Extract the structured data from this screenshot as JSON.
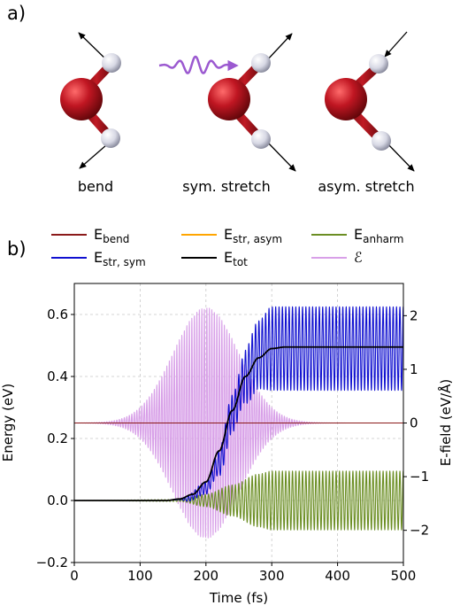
{
  "panel_a": {
    "panel_label": "a)",
    "modes": [
      {
        "label": "bend"
      },
      {
        "label": "sym. stretch"
      },
      {
        "label": "asym. stretch"
      }
    ],
    "colors": {
      "oxygen": "#b3121c",
      "hydrogen": "#dcdde6",
      "pulse": "#9b59d0"
    },
    "pulse_icon": "wavy-arrow-icon"
  },
  "chart_data": {
    "panel_label": "b)",
    "type": "line",
    "xlabel": "Time (fs)",
    "ylabel": "Energy (eV)",
    "y2label": "E-field (eV/Å)",
    "xlim": [
      0,
      500
    ],
    "ylim": [
      -0.2,
      0.7
    ],
    "y2lim": [
      -2.6,
      2.6
    ],
    "xticks": [
      "0",
      "100",
      "200",
      "300",
      "400",
      "500"
    ],
    "yticks": [
      "−0.2",
      "0.0",
      "0.2",
      "0.4",
      "0.6"
    ],
    "y2ticks": [
      "−2",
      "−1",
      "0",
      "1",
      "2"
    ],
    "y2tick_values": [
      -2,
      -1,
      0,
      1,
      2
    ],
    "grid": true,
    "legend_position": "top",
    "legend": [
      {
        "key": "bend",
        "base": "E",
        "sub": "bend",
        "color": "#8b1a1a"
      },
      {
        "key": "str_asym",
        "base": "E",
        "sub": "str, asym",
        "color": "#ffa500"
      },
      {
        "key": "anharm",
        "base": "E",
        "sub": "anharm",
        "color": "#6b8e23"
      },
      {
        "key": "str_sym",
        "base": "E",
        "sub": "str, sym",
        "color": "#1010d0"
      },
      {
        "key": "tot",
        "base": "E",
        "sub": "tot",
        "color": "#000000"
      },
      {
        "key": "field",
        "base": "ℰ",
        "sub": "",
        "color": "#d8a0e8"
      }
    ],
    "series": [
      {
        "key": "str_sym",
        "axis": "left",
        "envelope_center": {
          "t": [
            0,
            140,
            170,
            200,
            220,
            240,
            260,
            280,
            300,
            500
          ],
          "v": [
            0,
            0,
            0.005,
            0.04,
            0.12,
            0.28,
            0.4,
            0.47,
            0.49,
            0.49
          ]
        },
        "envelope_amp": {
          "t": [
            0,
            150,
            200,
            240,
            280,
            300,
            500
          ],
          "v": [
            0,
            0,
            0.02,
            0.06,
            0.11,
            0.135,
            0.135
          ]
        },
        "period_fs": 5.1
      },
      {
        "key": "tot",
        "axis": "left",
        "t": [
          0,
          140,
          160,
          180,
          200,
          220,
          240,
          260,
          280,
          300,
          320,
          500
        ],
        "v": [
          0,
          0,
          0.005,
          0.02,
          0.06,
          0.16,
          0.29,
          0.4,
          0.46,
          0.49,
          0.495,
          0.495
        ]
      },
      {
        "key": "anharm",
        "axis": "left",
        "envelope_center": {
          "t": [
            0,
            500
          ],
          "v": [
            0,
            0
          ]
        },
        "envelope_amp": {
          "t": [
            0,
            160,
            200,
            240,
            280,
            300,
            500
          ],
          "v": [
            0,
            0.003,
            0.02,
            0.05,
            0.085,
            0.095,
            0.095
          ]
        },
        "period_fs": 5.1
      },
      {
        "key": "field",
        "axis": "right",
        "gaussian": {
          "amplitude": 2.15,
          "center_fs": 200,
          "sigma_fs": 50
        },
        "period_fs": 3.8
      },
      {
        "key": "bend",
        "axis": "left",
        "t": [
          0,
          500
        ],
        "v": [
          0.25,
          0.25
        ]
      }
    ]
  }
}
